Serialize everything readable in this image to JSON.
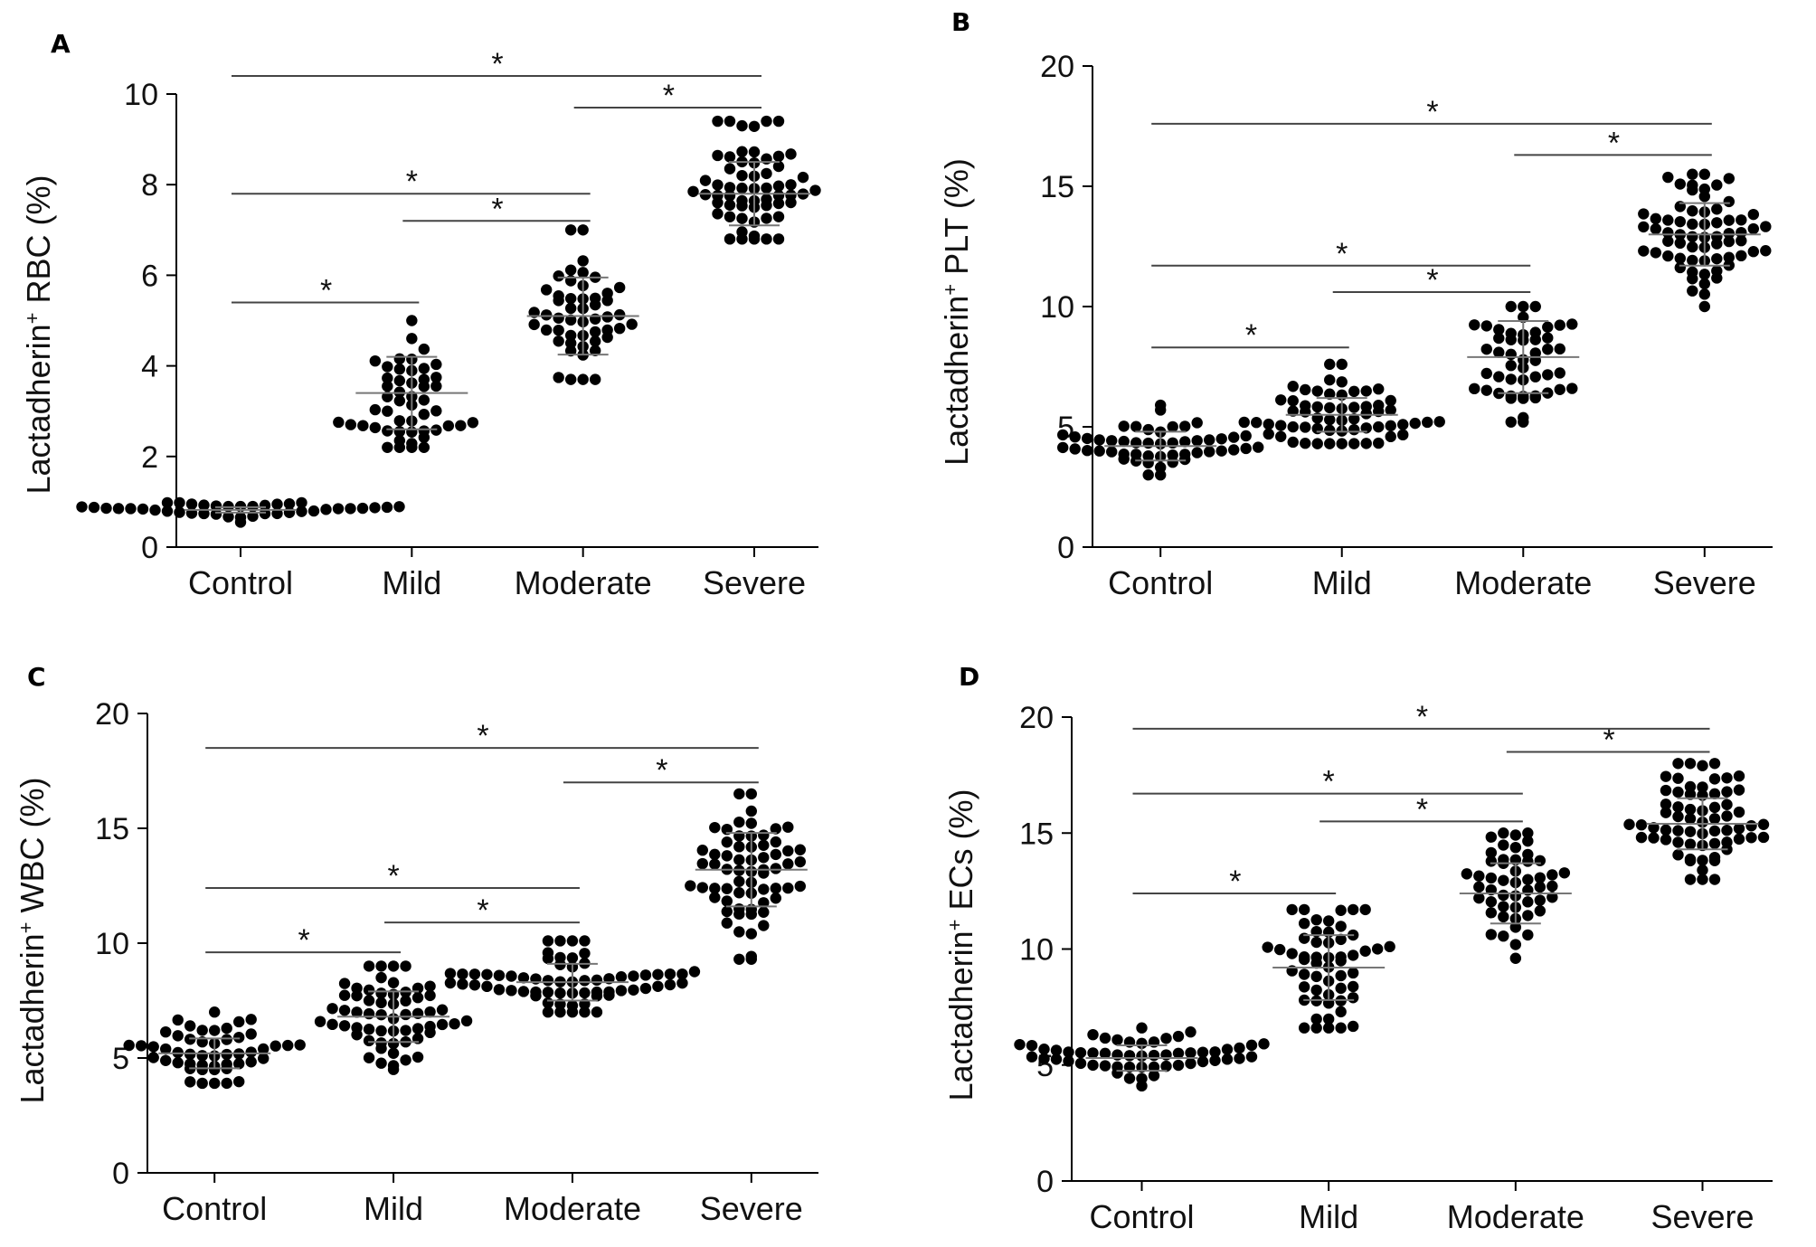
{
  "chart_data": [
    {
      "type": "scatter",
      "panel_label": "A",
      "ylabel": "RBC (%)",
      "ylabel_prefix": "Lactadherin",
      "ylabel_superscript": "+",
      "categories": [
        "Control",
        "Mild",
        "Moderate",
        "Severe"
      ],
      "ylim": [
        0,
        10
      ],
      "yticks": [
        "0",
        "2",
        "4",
        "6",
        "8",
        "10"
      ],
      "groups": [
        {
          "name": "Control",
          "mean": 0.82,
          "sd": 0.06,
          "min": 0.55,
          "max": 0.98,
          "n": 40
        },
        {
          "name": "Mild",
          "mean": 3.4,
          "sd": 0.8,
          "min": 2.2,
          "max": 5.0,
          "n": 50
        },
        {
          "name": "Moderate",
          "mean": 5.1,
          "sd": 0.85,
          "min": 3.7,
          "max": 7.0,
          "n": 50
        },
        {
          "name": "Severe",
          "mean": 7.8,
          "sd": 0.7,
          "min": 6.8,
          "max": 9.4,
          "n": 60
        }
      ],
      "significance": [
        {
          "from": "Control",
          "to": "Mild",
          "y": 5.4,
          "label": "*"
        },
        {
          "from": "Mild",
          "to": "Moderate",
          "y": 7.2,
          "label": "*"
        },
        {
          "from": "Control",
          "to": "Moderate",
          "y": 7.8,
          "label": "*"
        },
        {
          "from": "Moderate",
          "to": "Severe",
          "y": 9.7,
          "label": "*"
        },
        {
          "from": "Control",
          "to": "Severe",
          "y": 10.4,
          "label": "*"
        }
      ]
    },
    {
      "type": "scatter",
      "panel_label": "B",
      "ylabel": "PLT (%)",
      "ylabel_prefix": "Lactadherin",
      "ylabel_superscript": "+",
      "categories": [
        "Control",
        "Mild",
        "Moderate",
        "Severe"
      ],
      "ylim": [
        0,
        20
      ],
      "yticks": [
        "0",
        "5",
        "10",
        "15",
        "20"
      ],
      "groups": [
        {
          "name": "Control",
          "mean": 4.2,
          "sd": 0.6,
          "min": 3.0,
          "max": 5.9,
          "n": 50
        },
        {
          "name": "Mild",
          "mean": 5.5,
          "sd": 0.7,
          "min": 4.3,
          "max": 7.6,
          "n": 60
        },
        {
          "name": "Moderate",
          "mean": 7.9,
          "sd": 1.5,
          "min": 5.2,
          "max": 10.0,
          "n": 50
        },
        {
          "name": "Severe",
          "mean": 13.0,
          "sd": 1.3,
          "min": 10.0,
          "max": 15.5,
          "n": 65
        }
      ],
      "significance": [
        {
          "from": "Control",
          "to": "Mild",
          "y": 8.3,
          "label": "*"
        },
        {
          "from": "Mild",
          "to": "Moderate",
          "y": 10.6,
          "label": "*"
        },
        {
          "from": "Control",
          "to": "Moderate",
          "y": 11.7,
          "label": "*"
        },
        {
          "from": "Moderate",
          "to": "Severe",
          "y": 16.3,
          "label": "*"
        },
        {
          "from": "Control",
          "to": "Severe",
          "y": 17.6,
          "label": "*"
        }
      ]
    },
    {
      "type": "scatter",
      "panel_label": "C",
      "ylabel": "WBC (%)",
      "ylabel_prefix": "Lactadherin",
      "ylabel_superscript": "+",
      "categories": [
        "Control",
        "Mild",
        "Moderate",
        "Severe"
      ],
      "ylim": [
        0,
        20
      ],
      "yticks": [
        "0",
        "5",
        "10",
        "15",
        "20"
      ],
      "groups": [
        {
          "name": "Control",
          "mean": 5.2,
          "sd": 0.65,
          "min": 3.9,
          "max": 7.0,
          "n": 50
        },
        {
          "name": "Mild",
          "mean": 6.8,
          "sd": 1.1,
          "min": 4.5,
          "max": 9.0,
          "n": 60
        },
        {
          "name": "Moderate",
          "mean": 8.3,
          "sd": 0.8,
          "min": 7.0,
          "max": 10.1,
          "n": 65
        },
        {
          "name": "Severe",
          "mean": 13.2,
          "sd": 1.6,
          "min": 9.3,
          "max": 16.5,
          "n": 65
        }
      ],
      "significance": [
        {
          "from": "Control",
          "to": "Mild",
          "y": 9.6,
          "label": "*"
        },
        {
          "from": "Mild",
          "to": "Moderate",
          "y": 10.9,
          "label": "*"
        },
        {
          "from": "Control",
          "to": "Moderate",
          "y": 12.4,
          "label": "*"
        },
        {
          "from": "Moderate",
          "to": "Severe",
          "y": 17.0,
          "label": "*"
        },
        {
          "from": "Control",
          "to": "Severe",
          "y": 18.5,
          "label": "*"
        }
      ]
    },
    {
      "type": "scatter",
      "panel_label": "D",
      "ylabel": "ECs (%)",
      "ylabel_prefix": "Lactadherin",
      "ylabel_superscript": "+",
      "categories": [
        "Control",
        "Mild",
        "Moderate",
        "Severe"
      ],
      "ylim": [
        0,
        20
      ],
      "yticks": [
        "0",
        "5",
        "10",
        "15",
        "20"
      ],
      "groups": [
        {
          "name": "Control",
          "mean": 5.3,
          "sd": 0.55,
          "min": 4.1,
          "max": 6.6,
          "n": 55
        },
        {
          "name": "Mild",
          "mean": 9.2,
          "sd": 1.4,
          "min": 6.6,
          "max": 11.7,
          "n": 55
        },
        {
          "name": "Moderate",
          "mean": 12.4,
          "sd": 1.3,
          "min": 9.6,
          "max": 15.0,
          "n": 50
        },
        {
          "name": "Severe",
          "mean": 15.4,
          "sd": 1.1,
          "min": 13.0,
          "max": 18.0,
          "n": 65
        }
      ],
      "significance": [
        {
          "from": "Control",
          "to": "Mild",
          "y": 12.4,
          "label": "*"
        },
        {
          "from": "Mild",
          "to": "Moderate",
          "y": 15.5,
          "label": "*"
        },
        {
          "from": "Control",
          "to": "Moderate",
          "y": 16.7,
          "label": "*"
        },
        {
          "from": "Moderate",
          "to": "Severe",
          "y": 18.5,
          "label": "*"
        },
        {
          "from": "Control",
          "to": "Severe",
          "y": 19.5,
          "label": "*"
        }
      ]
    }
  ]
}
